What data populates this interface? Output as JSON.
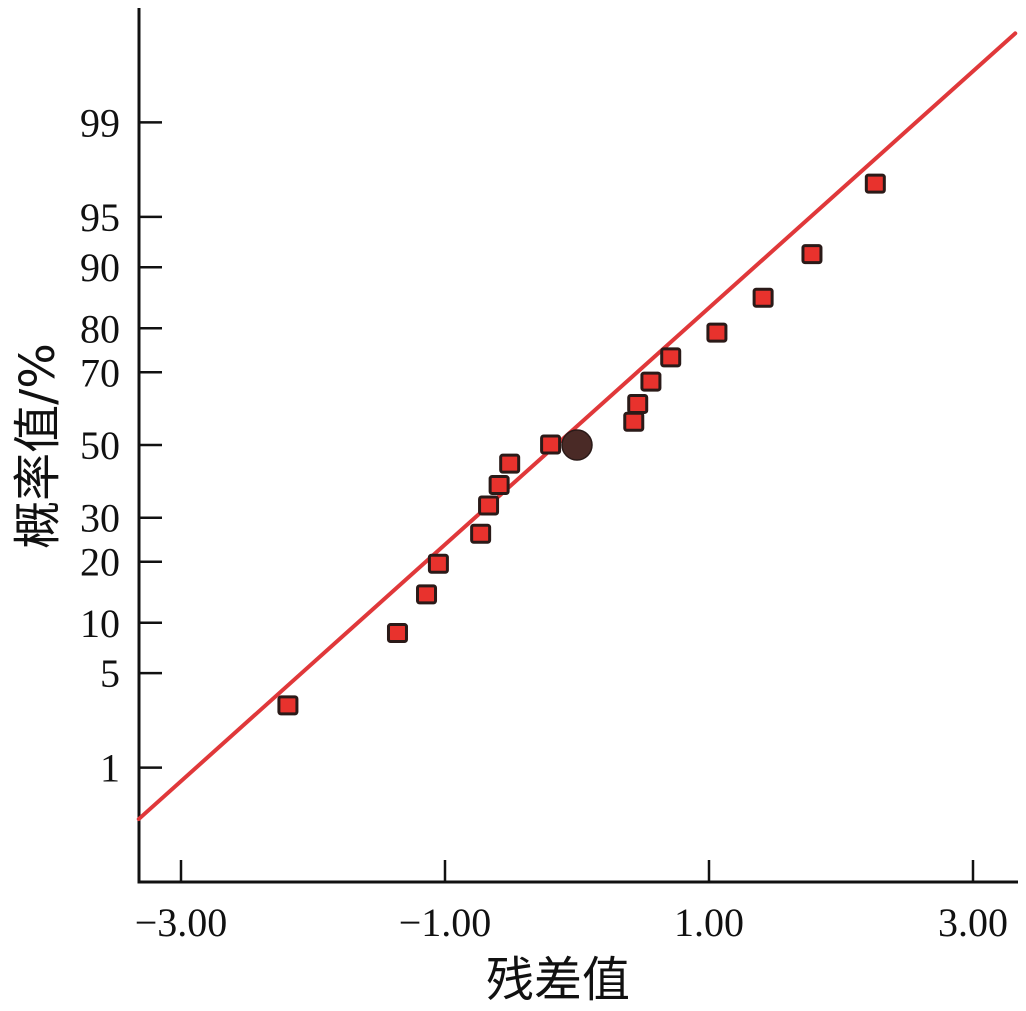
{
  "chart_data": {
    "type": "scatter",
    "title": "",
    "xlabel": "残差值",
    "ylabel": "概率值/%",
    "x_ticks": [
      -3.0,
      -1.0,
      1.0,
      3.0
    ],
    "x_tick_labels": [
      "−3.00",
      "−1.00",
      "1.00",
      "3.00"
    ],
    "y_ticks": [
      1,
      5,
      10,
      20,
      30,
      50,
      70,
      80,
      90,
      95,
      99
    ],
    "y_tick_labels": [
      "1",
      "5",
      "10",
      "20",
      "30",
      "50",
      "70",
      "80",
      "90",
      "95",
      "99"
    ],
    "xlim": [
      -3.32,
      3.32
    ],
    "y_scale": "normal-probability",
    "grid": false,
    "legend": "none",
    "series": [
      {
        "marker": "square",
        "color": "#e8322d",
        "points": [
          {
            "x": -2.19,
            "y": 3.0
          },
          {
            "x": -1.36,
            "y": 8.7
          },
          {
            "x": -1.14,
            "y": 14.0
          },
          {
            "x": -1.05,
            "y": 19.5
          },
          {
            "x": -0.73,
            "y": 26.0
          },
          {
            "x": -0.67,
            "y": 33.0
          },
          {
            "x": -0.59,
            "y": 38.5
          },
          {
            "x": -0.51,
            "y": 44.5
          },
          {
            "x": -0.2,
            "y": 50.0
          },
          {
            "x": 0.43,
            "y": 56.5
          },
          {
            "x": 0.46,
            "y": 61.5
          },
          {
            "x": 0.56,
            "y": 67.5
          },
          {
            "x": 0.71,
            "y": 73.5
          },
          {
            "x": 1.06,
            "y": 79.0
          },
          {
            "x": 1.41,
            "y": 85.5
          },
          {
            "x": 1.78,
            "y": 91.5
          },
          {
            "x": 2.26,
            "y": 97.0
          }
        ]
      },
      {
        "marker": "circle",
        "color": "#4a2a26",
        "points": [
          {
            "x": 0.0,
            "y": 50.0
          }
        ]
      }
    ],
    "fit_line": {
      "color": "#e0383a",
      "x": [
        -3.32,
        3.32
      ],
      "y": [
        0.35,
        99.85
      ]
    }
  }
}
